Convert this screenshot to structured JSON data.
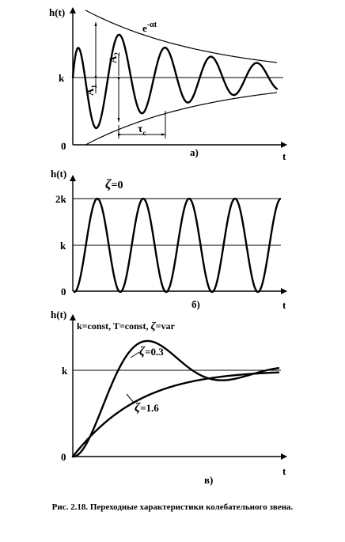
{
  "panel_a": {
    "y_axis_label": "h(t)",
    "x_axis_label": "t",
    "k_label": "k",
    "zero_label": "0",
    "envelope_label": "e",
    "envelope_exp": "-αt",
    "a1_label": "A",
    "a1_sub": "1",
    "a2_label": "A",
    "a2_sub": "2",
    "tau_label": "τ",
    "tau_sub": "c",
    "caption": "а)"
  },
  "panel_b": {
    "y_axis_label": "h(t)",
    "x_axis_label": "t",
    "two_k_label": "2k",
    "k_label": "k",
    "zero_label": "0",
    "zeta_label": "ζ",
    "zeta_value": "=0",
    "caption": "б)"
  },
  "panel_c": {
    "y_axis_label": "h(t)",
    "x_axis_label": "t",
    "k_label": "k",
    "zero_label": "0",
    "params_label": "k=const, T=const, ",
    "params_zeta": "ζ",
    "params_var": "=var",
    "zeta1_symbol": "ζ",
    "zeta1_value": "=0.3",
    "zeta2_symbol": "ζ",
    "zeta2_value": "=1.6",
    "caption": "в)"
  },
  "figure_caption": "Рис. 2.18. Переходные характеристики колебательного звена."
}
